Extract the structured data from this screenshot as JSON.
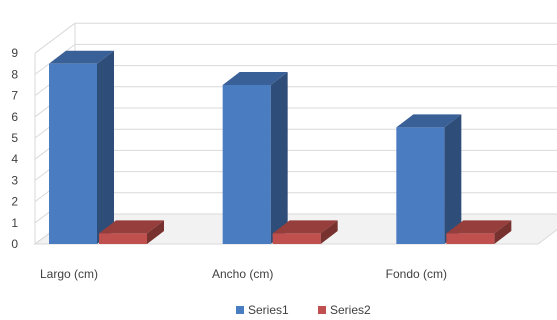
{
  "chart_data": {
    "type": "bar",
    "bar_style": "3d-clustered-column",
    "categories": [
      "Largo (cm)",
      "Ancho (cm)",
      "Fondo (cm)"
    ],
    "series": [
      {
        "name": "Series1",
        "values": [
          8.5,
          7.5,
          5.5
        ],
        "color": "#4a7cc2"
      },
      {
        "name": "Series2",
        "values": [
          0.5,
          0.5,
          0.5
        ],
        "color": "#c0504d"
      }
    ],
    "ylim": [
      0,
      9
    ],
    "yticks": [
      "0",
      "1",
      "2",
      "3",
      "4",
      "5",
      "6",
      "7",
      "8",
      "9"
    ],
    "grid": true,
    "legend_position": "bottom"
  }
}
